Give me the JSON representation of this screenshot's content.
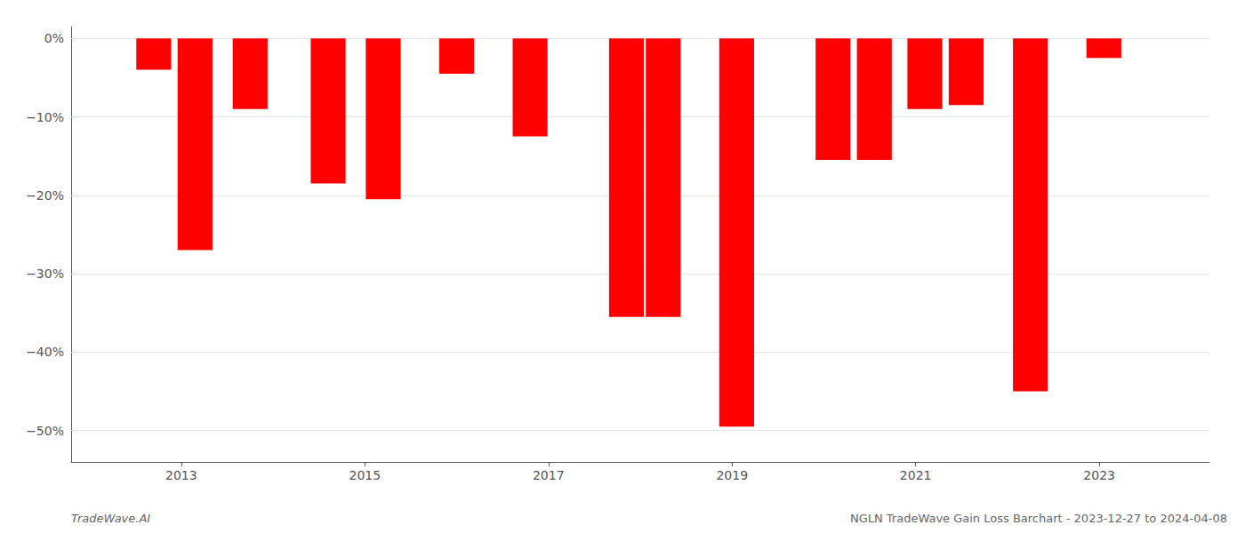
{
  "chart_data": {
    "type": "bar",
    "x": [
      2012.7,
      2013.15,
      2013.75,
      2014.6,
      2015.2,
      2016.0,
      2016.8,
      2017.85,
      2018.25,
      2019.05,
      2020.1,
      2020.55,
      2021.1,
      2021.55,
      2022.25,
      2023.05
    ],
    "values": [
      -4.0,
      -27.0,
      -9.0,
      -18.5,
      -20.5,
      -4.5,
      -12.5,
      -35.5,
      -35.5,
      -49.5,
      -15.5,
      -15.5,
      -9.0,
      -8.5,
      -45.0,
      -2.5
    ],
    "color": "#ff0000",
    "xlim": [
      2011.8,
      2024.2
    ],
    "xticks": [
      2013,
      2015,
      2017,
      2019,
      2021,
      2023
    ],
    "ylim": [
      -54,
      1.5
    ],
    "yticks": [
      {
        "value": 0,
        "label": "0%"
      },
      {
        "value": -10,
        "label": "−10%"
      },
      {
        "value": -20,
        "label": "−20%"
      },
      {
        "value": -30,
        "label": "−30%"
      },
      {
        "value": -40,
        "label": "−40%"
      },
      {
        "value": -50,
        "label": "−50%"
      }
    ],
    "grid": true,
    "annotations": [
      "TradeWave.AI",
      "NGLN TradeWave Gain Loss Barchart - 2023-12-27 to 2024-04-08"
    ]
  }
}
